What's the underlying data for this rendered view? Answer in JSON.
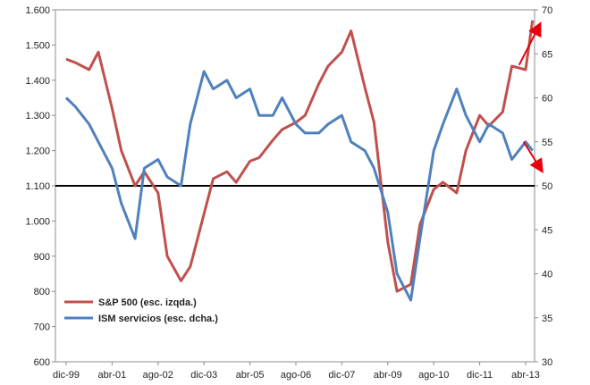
{
  "chart_data": {
    "type": "line",
    "x_categories": [
      "dic-99",
      "abr-01",
      "ago-02",
      "dic-03",
      "abr-05",
      "ago-06",
      "dic-07",
      "abr-09",
      "ago-10",
      "dic-11",
      "abr-13"
    ],
    "y_left": {
      "min": 600,
      "max": 1600,
      "ticks": [
        "600",
        "700",
        "800",
        "900",
        "1.000",
        "1.100",
        "1.200",
        "1.300",
        "1.400",
        "1.500",
        "1.600"
      ]
    },
    "y_right": {
      "min": 30,
      "max": 70,
      "ticks": [
        "30",
        "35",
        "40",
        "45",
        "50",
        "55",
        "60",
        "65",
        "70"
      ]
    },
    "reference_line": {
      "axis": "left",
      "value": 1100,
      "color": "#000000"
    },
    "series": [
      {
        "name": "S&P 500 (esc. izqda.)",
        "axis": "left",
        "color": "#c0504d",
        "x_index": [
          0,
          0.2,
          0.5,
          0.7,
          1,
          1.2,
          1.5,
          1.7,
          2,
          2.2,
          2.5,
          2.7,
          3,
          3.2,
          3.5,
          3.7,
          4,
          4.2,
          4.5,
          4.7,
          5,
          5.2,
          5.5,
          5.7,
          6,
          6.2,
          6.5,
          6.7,
          7,
          7.2,
          7.5,
          7.7,
          8,
          8.2,
          8.5,
          8.7,
          9,
          9.2,
          9.5,
          9.7,
          10,
          10.15
        ],
        "values": [
          1460,
          1450,
          1430,
          1480,
          1320,
          1200,
          1100,
          1140,
          1080,
          900,
          830,
          870,
          1020,
          1120,
          1140,
          1110,
          1170,
          1180,
          1230,
          1260,
          1280,
          1300,
          1390,
          1440,
          1480,
          1540,
          1380,
          1280,
          940,
          800,
          820,
          990,
          1090,
          1110,
          1080,
          1200,
          1300,
          1270,
          1310,
          1440,
          1430,
          1570
        ]
      },
      {
        "name": "ISM servicios (esc. dcha.)",
        "axis": "right",
        "color": "#4f81bd",
        "x_index": [
          0,
          0.2,
          0.5,
          0.7,
          1,
          1.2,
          1.5,
          1.7,
          2,
          2.2,
          2.5,
          2.7,
          3,
          3.2,
          3.5,
          3.7,
          4,
          4.2,
          4.5,
          4.7,
          5,
          5.2,
          5.5,
          5.7,
          6,
          6.2,
          6.5,
          6.7,
          7,
          7.2,
          7.5,
          7.7,
          8,
          8.2,
          8.5,
          8.7,
          9,
          9.2,
          9.5,
          9.7,
          10,
          10.15
        ],
        "values": [
          60,
          59,
          57,
          55,
          52,
          48,
          44,
          52,
          53,
          51,
          50,
          57,
          63,
          61,
          62,
          60,
          61,
          58,
          58,
          60,
          57,
          56,
          56,
          57,
          58,
          55,
          54,
          52,
          47,
          40,
          37,
          44,
          54,
          57,
          61,
          58,
          55,
          57,
          56,
          53,
          55,
          54
        ]
      }
    ],
    "legend_position": "bottom-left",
    "grid": false,
    "annotations": [
      {
        "type": "arrow",
        "direction": "up",
        "color": "#e8000b"
      },
      {
        "type": "arrow",
        "direction": "down",
        "color": "#e8000b"
      }
    ]
  }
}
